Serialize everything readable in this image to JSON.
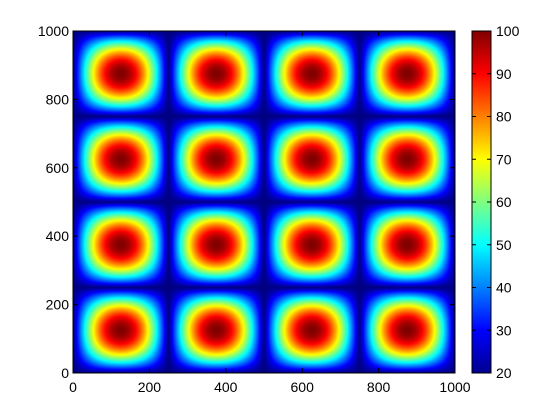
{
  "chart_data": {
    "type": "heatmap",
    "title": "",
    "xlabel": "",
    "ylabel": "",
    "xlim": [
      0,
      1000
    ],
    "ylim": [
      0,
      1000
    ],
    "xticks": [
      0,
      200,
      400,
      600,
      800,
      1000
    ],
    "yticks": [
      0,
      200,
      400,
      600,
      800,
      1000
    ],
    "xtick_labels": [
      "0",
      "200",
      "400",
      "600",
      "800",
      "1000"
    ],
    "ytick_labels": [
      "0",
      "200",
      "400",
      "600",
      "800",
      "1000"
    ],
    "field": {
      "description_of_values": "value(x,y) = 20 + 80 * |sin(2*pi*x/500)| * |sin(2*pi*y/500)| (approx.)",
      "period": 500,
      "min": 20,
      "max": 100,
      "low_lines_x": [
        0,
        250,
        500,
        750,
        1000
      ],
      "low_lines_y": [
        0,
        250,
        500,
        750,
        1000
      ],
      "peak_centers": [
        125,
        375,
        625,
        875
      ]
    },
    "colorbar": {
      "colormap": "jet",
      "range": [
        20,
        100
      ],
      "ticks": [
        20,
        30,
        40,
        50,
        60,
        70,
        80,
        90,
        100
      ],
      "tick_labels": [
        "20",
        "30",
        "40",
        "50",
        "60",
        "70",
        "80",
        "90",
        "100"
      ]
    },
    "grid": false
  }
}
